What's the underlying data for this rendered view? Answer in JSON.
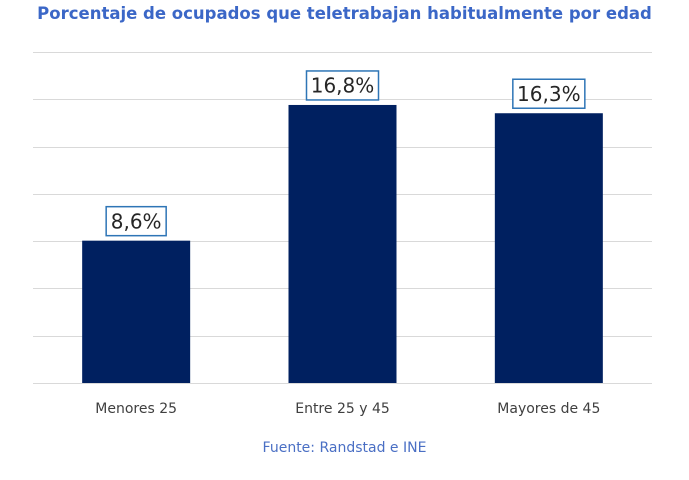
{
  "chart_data": {
    "type": "bar",
    "title": "Porcentaje de ocupados que teletrabajan habitualmente por edad",
    "categories": [
      "Menores 25",
      "Entre 25 y 45",
      "Mayores de 45"
    ],
    "values": [
      8.6,
      16.8,
      16.3
    ],
    "data_labels": [
      "8,6%",
      "16,8%",
      "16,3%"
    ],
    "xlabel": "",
    "ylabel": "",
    "ylim": [
      0,
      20
    ],
    "grid": true,
    "bar_color": "#002060",
    "label_border_color": "#2e75b6",
    "gridline_color": "#d9d9d9",
    "title_color": "#3b67c7",
    "source": "Fuente: Randstad e INE"
  }
}
